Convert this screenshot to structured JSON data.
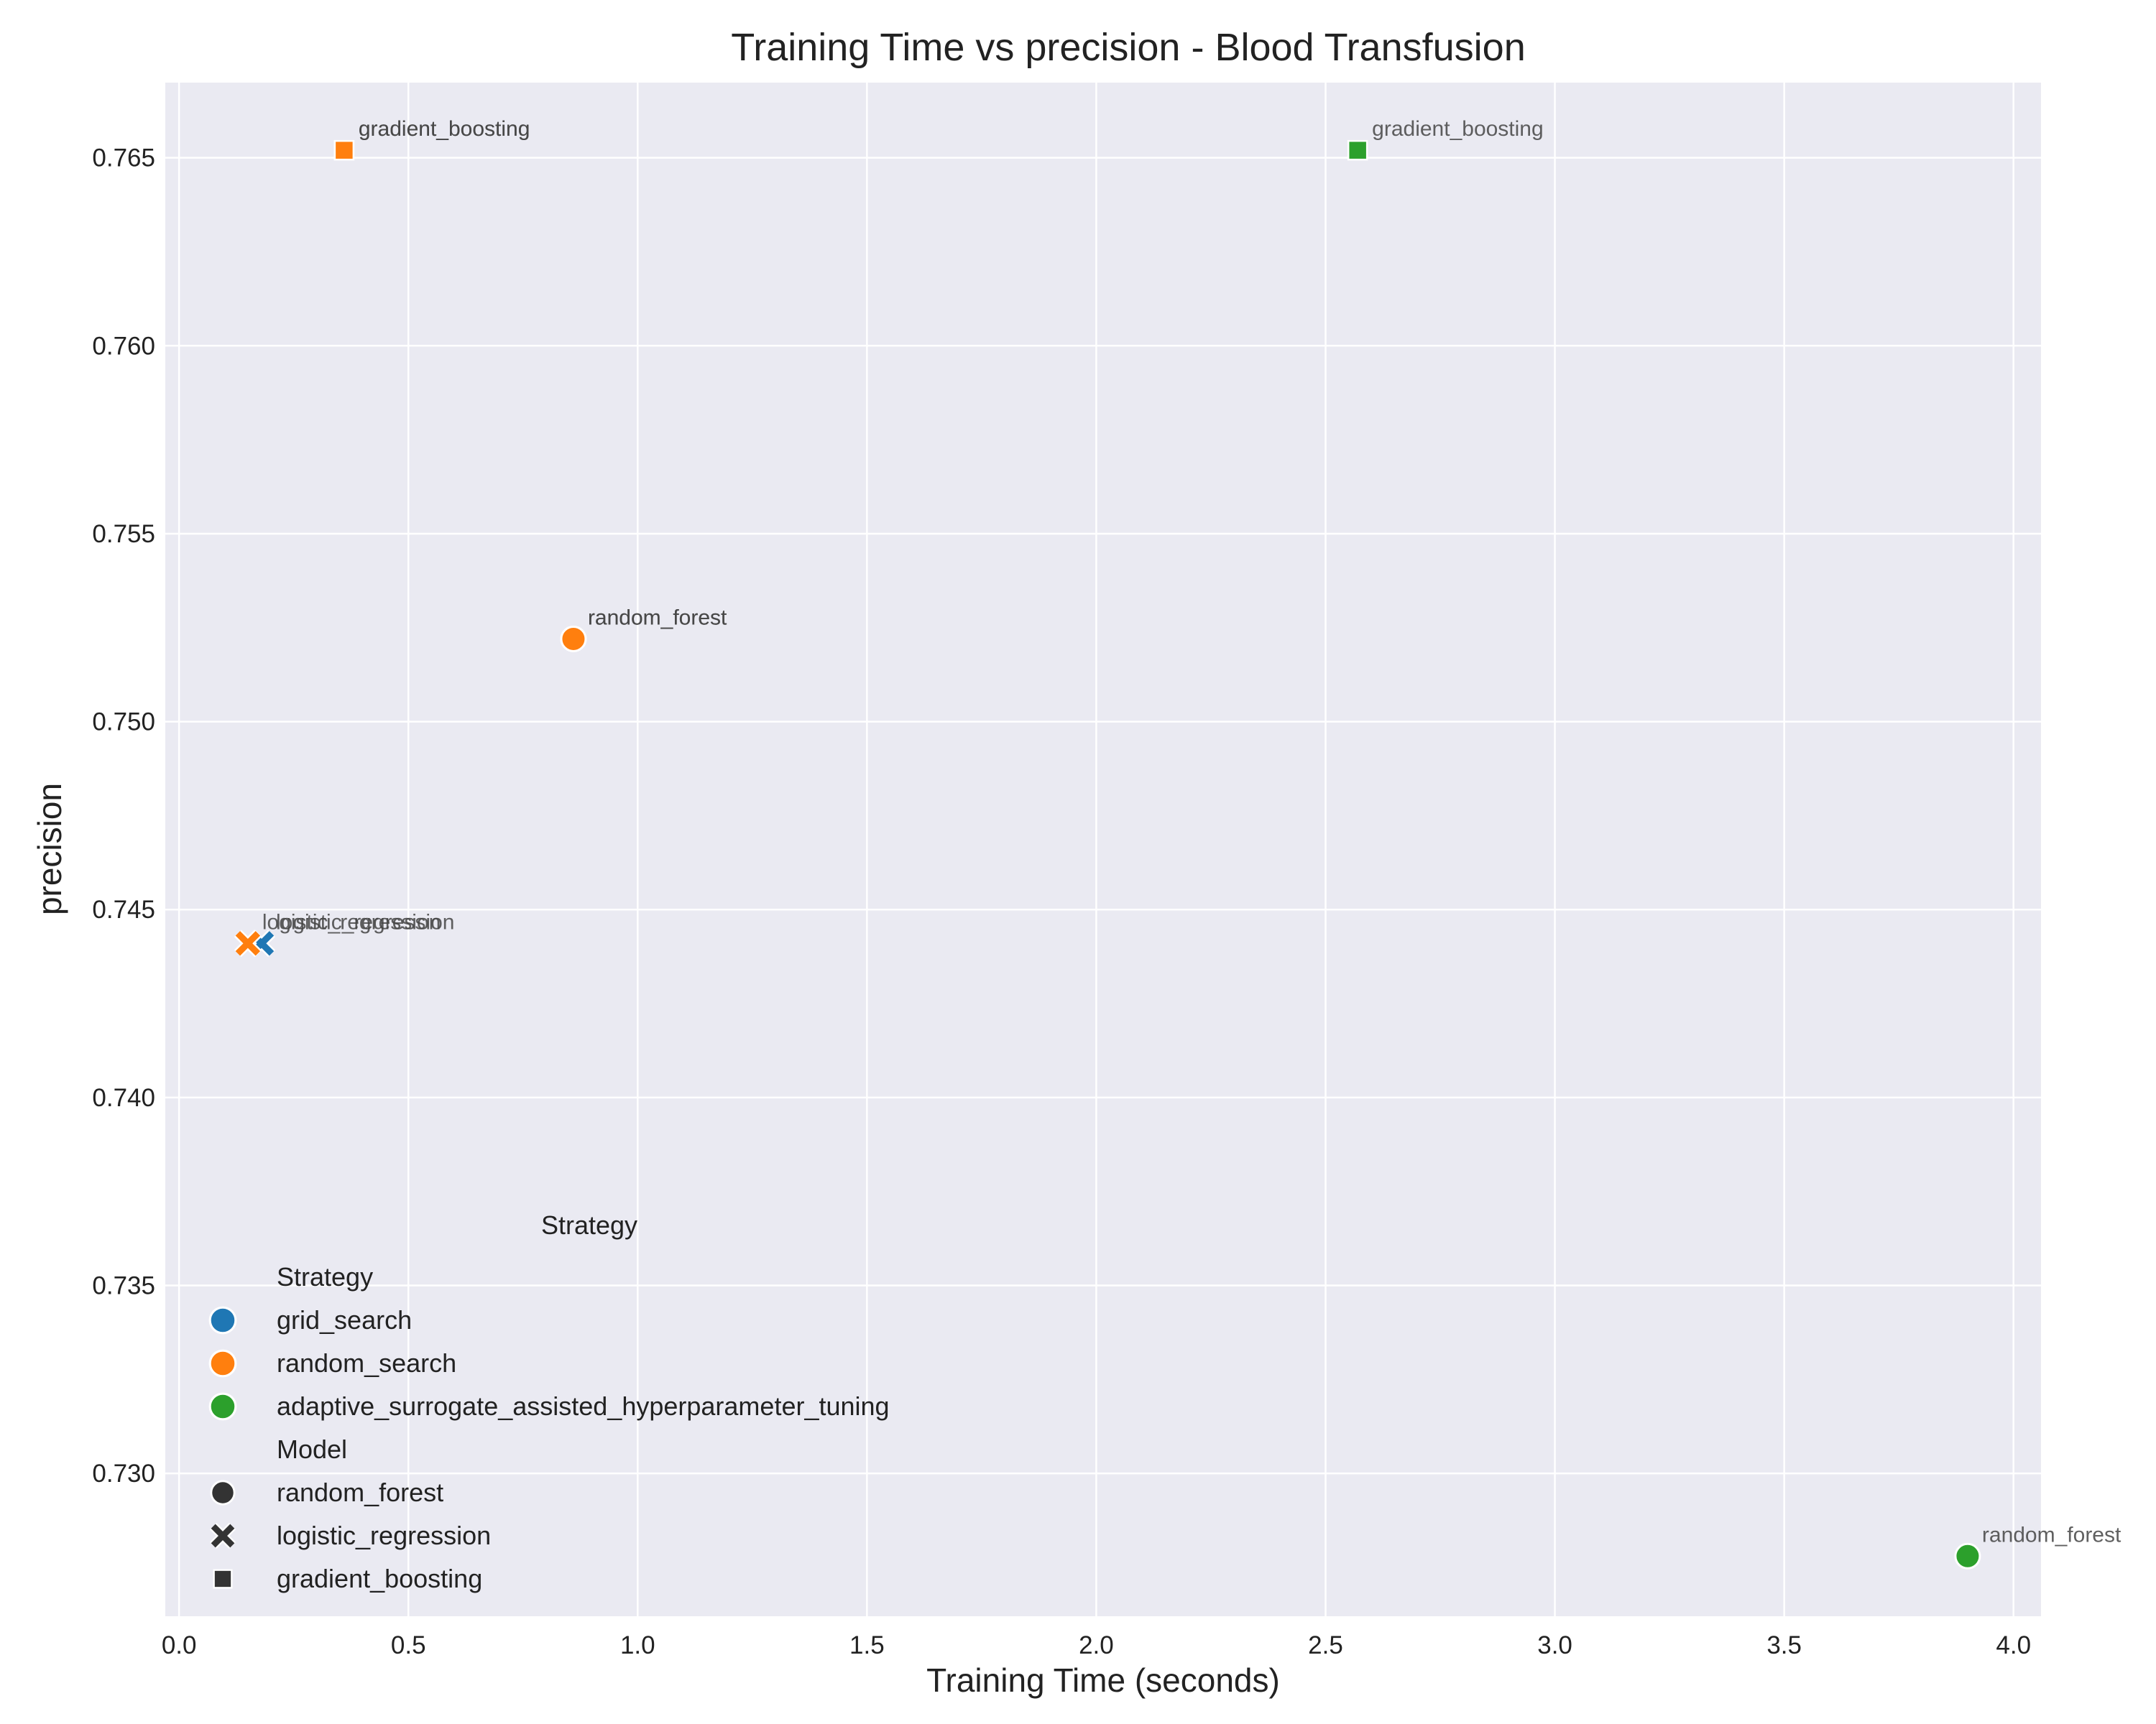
{
  "chart_data": {
    "type": "scatter",
    "title": "Training Time vs precision - Blood Transfusion",
    "xlabel": "Training Time (seconds)",
    "ylabel": "precision",
    "xlim": [
      -0.03,
      4.06
    ],
    "ylim": [
      0.7262,
      0.767
    ],
    "xticks": [
      0.0,
      0.5,
      1.0,
      1.5,
      2.0,
      2.5,
      3.0,
      3.5,
      4.0
    ],
    "xtick_labels": [
      "0.0",
      "0.5",
      "1.0",
      "1.5",
      "2.0",
      "2.5",
      "3.0",
      "3.5",
      "4.0"
    ],
    "yticks": [
      0.73,
      0.735,
      0.74,
      0.745,
      0.75,
      0.755,
      0.76,
      0.765
    ],
    "ytick_labels": [
      "0.730",
      "0.735",
      "0.740",
      "0.745",
      "0.750",
      "0.755",
      "0.760",
      "0.765"
    ],
    "grid": true,
    "background_color": "#eaeaf2",
    "strategy_colors": {
      "grid_search": "#1f77b4",
      "random_search": "#ff7f0e",
      "adaptive_surrogate_assisted_hyperparameter_tuning": "#2ca02c"
    },
    "model_markers": {
      "random_forest": "circle",
      "logistic_regression": "x",
      "gradient_boosting": "square"
    },
    "points": [
      {
        "strategy": "grid_search",
        "model": "random_forest",
        "x": 0.86,
        "y": 0.7522,
        "label": "random_forest"
      },
      {
        "strategy": "grid_search",
        "model": "logistic_regression",
        "x": 0.18,
        "y": 0.7441,
        "label": "logistic_regression"
      },
      {
        "strategy": "grid_search",
        "model": "gradient_boosting",
        "x": 0.36,
        "y": 0.7652,
        "label": "gradient_boosting"
      },
      {
        "strategy": "random_search",
        "model": "random_forest",
        "x": 0.86,
        "y": 0.7522,
        "label": "random_forest"
      },
      {
        "strategy": "random_search",
        "model": "logistic_regression",
        "x": 0.15,
        "y": 0.7441,
        "label": "logistic_regression"
      },
      {
        "strategy": "random_search",
        "model": "gradient_boosting",
        "x": 0.36,
        "y": 0.7652,
        "label": "gradient_boosting"
      },
      {
        "strategy": "adaptive_surrogate_assisted_hyperparameter_tuning",
        "model": "random_forest",
        "x": 3.9,
        "y": 0.7278,
        "label": "random_forest"
      },
      {
        "strategy": "adaptive_surrogate_assisted_hyperparameter_tuning",
        "model": "gradient_boosting",
        "x": 2.57,
        "y": 0.7652,
        "label": "gradient_boosting"
      }
    ],
    "extra_annotation": "Strategy",
    "legend": {
      "placement": "lower-left",
      "strategy_title": "Strategy",
      "strategies": [
        "grid_search",
        "random_search",
        "adaptive_surrogate_assisted_hyperparameter_tuning"
      ],
      "model_title": "Model",
      "models": [
        "random_forest",
        "logistic_regression",
        "gradient_boosting"
      ]
    }
  }
}
